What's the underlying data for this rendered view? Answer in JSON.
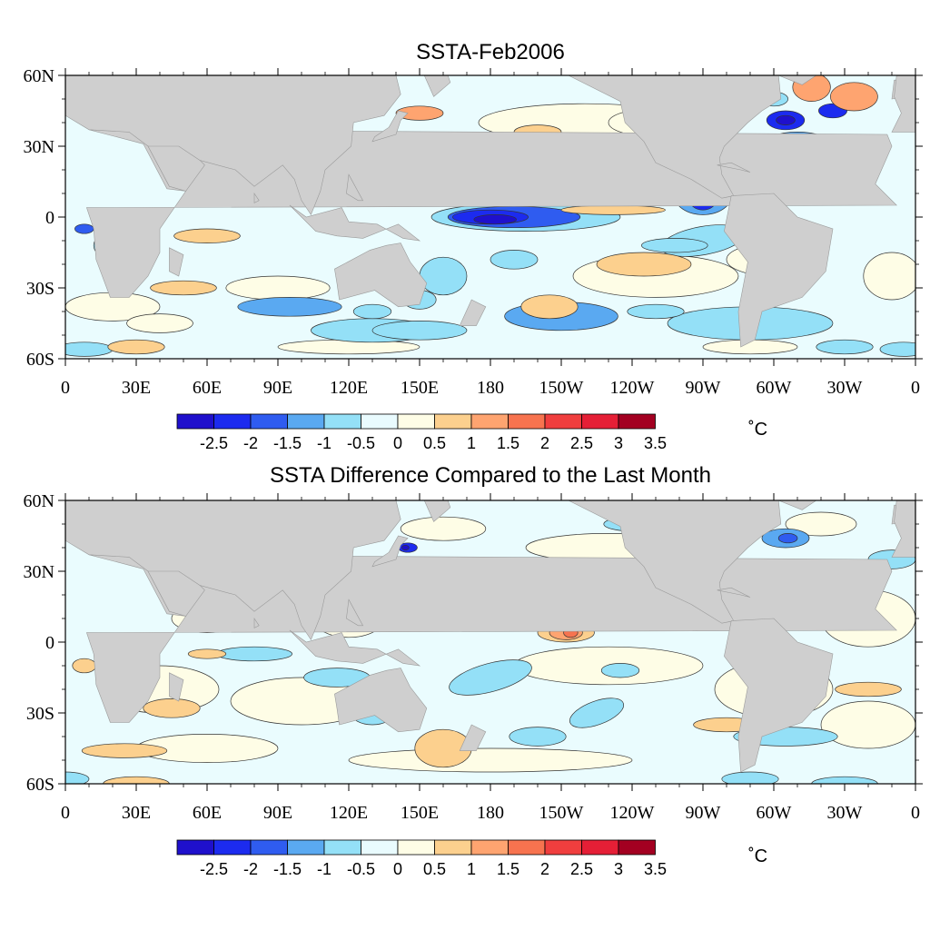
{
  "panels": [
    {
      "id": "top",
      "title": "SSTA-Feb2006"
    },
    {
      "id": "bottom",
      "title": "SSTA Difference Compared to the Last Month"
    }
  ],
  "axes": {
    "x_labels": [
      "0",
      "30E",
      "60E",
      "90E",
      "120E",
      "150E",
      "180",
      "150W",
      "120W",
      "90W",
      "60W",
      "30W",
      "0"
    ],
    "y_labels": [
      "60N",
      "30N",
      "0",
      "30S",
      "60S"
    ]
  },
  "colorbar": {
    "labels": [
      "-2.5",
      "-2",
      "-1.5",
      "-1",
      "-0.5",
      "0",
      "0.5",
      "1",
      "1.5",
      "2",
      "2.5",
      "3",
      "3.5"
    ],
    "colors": [
      "#1f10cc",
      "#1c2bef",
      "#2f5cf0",
      "#5aa9f1",
      "#94e0f7",
      "#e9fbfe",
      "#fefde6",
      "#fcd08e",
      "#fea470",
      "#f7734f",
      "#f03e3e",
      "#e51f36",
      "#a30021"
    ],
    "units": "˚C"
  },
  "colors": {
    "land": "#cfcfcf",
    "ocean_base": "#eafcfe",
    "contour": "#333333"
  }
}
